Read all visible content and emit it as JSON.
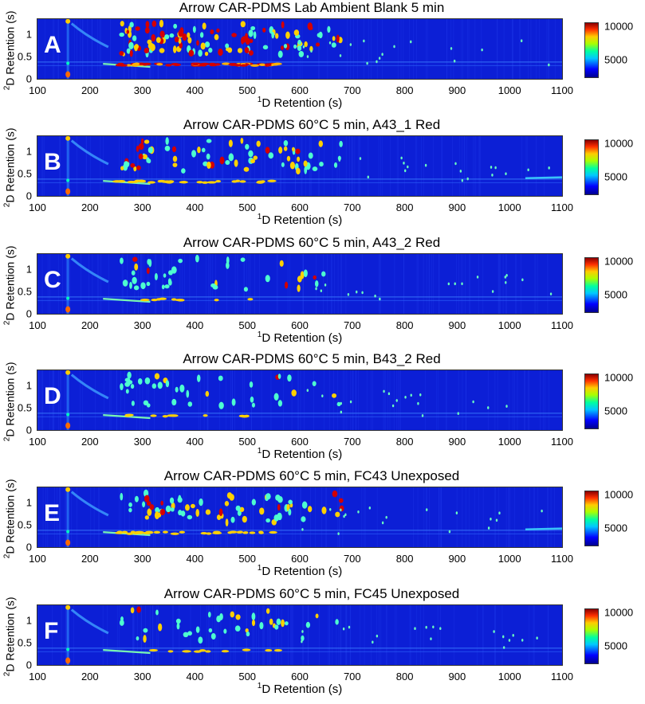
{
  "chart_data": [
    {
      "type": "heatmap",
      "panel_label": "A",
      "title": "Arrow CAR-PDMS Lab Ambient Blank 5 min",
      "intensity": "high",
      "xlabel_sup": "1",
      "xlabel": "D Retention (s)",
      "ylabel_sup": "2",
      "ylabel": "D Retention (s)",
      "xlim": [
        100,
        1100
      ],
      "ylim": [
        0,
        1.35
      ],
      "xticks": [
        "100",
        "200",
        "300",
        "400",
        "500",
        "600",
        "700",
        "800",
        "900",
        "1000",
        "1100"
      ],
      "yticks": [
        "0",
        "0.5",
        "1"
      ],
      "colorbar_ticks": [
        "10000",
        "5000"
      ],
      "colorbar_range": [
        2500,
        10000
      ]
    },
    {
      "type": "heatmap",
      "panel_label": "B",
      "title": "Arrow CAR-PDMS 60°C 5 min, A43_1 Red",
      "intensity": "medium",
      "xlabel_sup": "1",
      "xlabel": "D Retention (s)",
      "ylabel_sup": "2",
      "ylabel": "D Retention (s)",
      "xlim": [
        100,
        1100
      ],
      "ylim": [
        0,
        1.35
      ],
      "xticks": [
        "100",
        "200",
        "300",
        "400",
        "500",
        "600",
        "700",
        "800",
        "900",
        "1000",
        "1100"
      ],
      "yticks": [
        "0",
        "0.5",
        "1"
      ],
      "colorbar_ticks": [
        "10000",
        "5000"
      ],
      "colorbar_range": [
        2500,
        10000
      ]
    },
    {
      "type": "heatmap",
      "panel_label": "C",
      "title": "Arrow CAR-PDMS 60°C 5 min, A43_2 Red",
      "intensity": "low",
      "xlabel_sup": "1",
      "xlabel": "D Retention (s)",
      "ylabel_sup": "2",
      "ylabel": "D Retention (s)",
      "xlim": [
        100,
        1100
      ],
      "ylim": [
        0,
        1.35
      ],
      "xticks": [
        "100",
        "200",
        "300",
        "400",
        "500",
        "600",
        "700",
        "800",
        "900",
        "1000",
        "1100"
      ],
      "yticks": [
        "0",
        "0.5",
        "1"
      ],
      "colorbar_ticks": [
        "10000",
        "5000"
      ],
      "colorbar_range": [
        2500,
        10000
      ]
    },
    {
      "type": "heatmap",
      "panel_label": "D",
      "title": "Arrow CAR-PDMS 60°C 5 min, B43_2 Red",
      "intensity": "low",
      "xlabel_sup": "1",
      "xlabel": "D Retention (s)",
      "ylabel_sup": "2",
      "ylabel": "D Retention (s)",
      "xlim": [
        100,
        1100
      ],
      "ylim": [
        0,
        1.35
      ],
      "xticks": [
        "100",
        "200",
        "300",
        "400",
        "500",
        "600",
        "700",
        "800",
        "900",
        "1000",
        "1100"
      ],
      "yticks": [
        "0",
        "0.5",
        "1"
      ],
      "colorbar_ticks": [
        "10000",
        "5000"
      ],
      "colorbar_range": [
        2500,
        10000
      ]
    },
    {
      "type": "heatmap",
      "panel_label": "E",
      "title": "Arrow CAR-PDMS 60°C 5 min, FC43 Unexposed",
      "intensity": "medium",
      "xlabel_sup": "1",
      "xlabel": "D Retention (s)",
      "ylabel_sup": "2",
      "ylabel": "D Retention (s)",
      "xlim": [
        100,
        1100
      ],
      "ylim": [
        0,
        1.35
      ],
      "xticks": [
        "100",
        "200",
        "300",
        "400",
        "500",
        "600",
        "700",
        "800",
        "900",
        "1000",
        "1100"
      ],
      "yticks": [
        "0",
        "0.5",
        "1"
      ],
      "colorbar_ticks": [
        "10000",
        "5000"
      ],
      "colorbar_range": [
        2500,
        10000
      ]
    },
    {
      "type": "heatmap",
      "panel_label": "F",
      "title": "Arrow CAR-PDMS 60°C 5 min, FC45 Unexposed",
      "intensity": "low",
      "xlabel_sup": "1",
      "xlabel": "D Retention (s)",
      "ylabel_sup": "2",
      "ylabel": "D Retention (s)",
      "xlim": [
        100,
        1100
      ],
      "ylim": [
        0,
        1.35
      ],
      "xticks": [
        "100",
        "200",
        "300",
        "400",
        "500",
        "600",
        "700",
        "800",
        "900",
        "1000",
        "1100"
      ],
      "yticks": [
        "0",
        "0.5",
        "1"
      ],
      "colorbar_ticks": [
        "10000",
        "5000"
      ],
      "colorbar_range": [
        2500,
        10000
      ]
    }
  ],
  "colors": {
    "background": "#0c1fd6",
    "hot": "#c80000",
    "warm": "#ffd700",
    "mid": "#00ffc0"
  }
}
